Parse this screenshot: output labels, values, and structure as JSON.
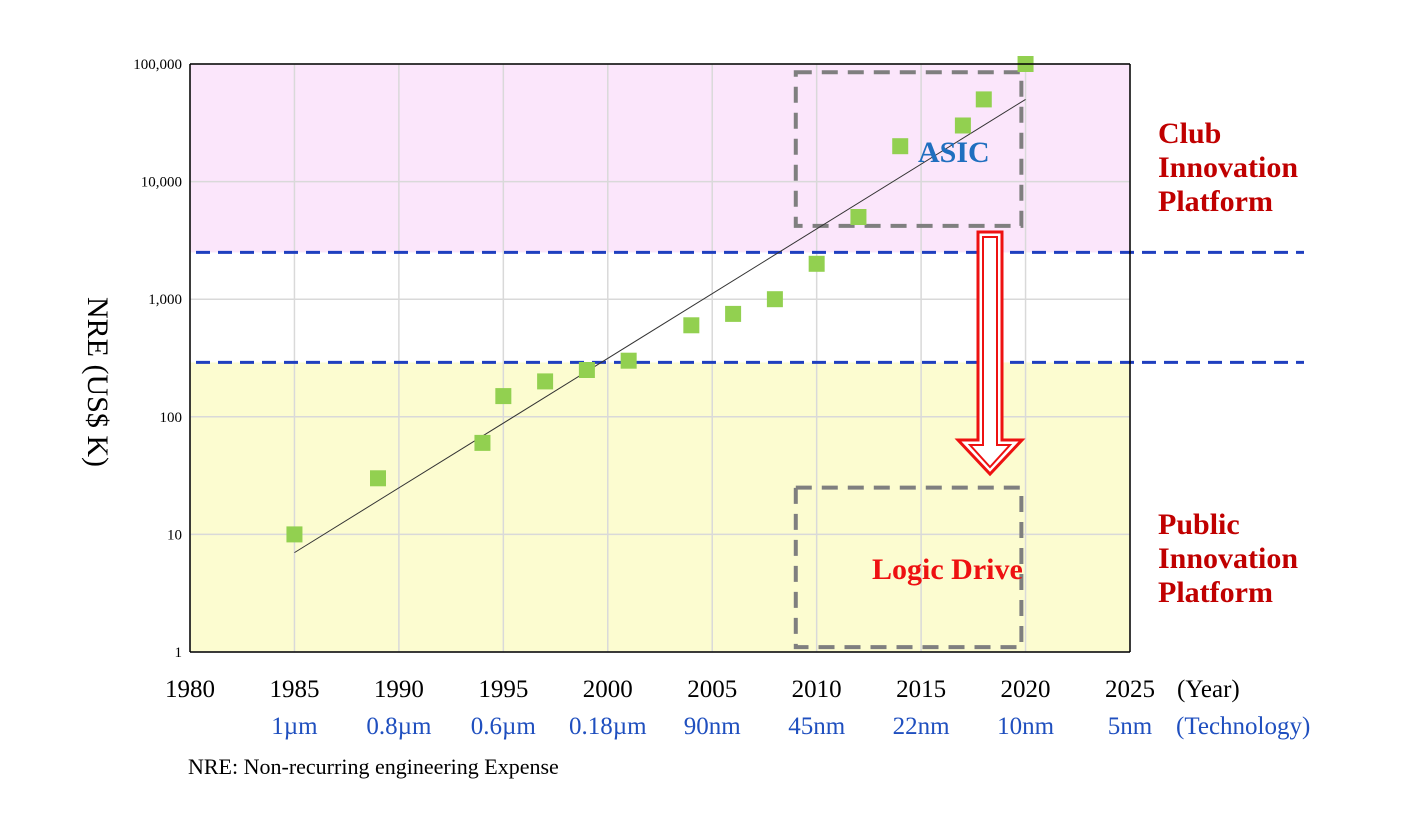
{
  "chart_data": {
    "type": "scatter",
    "title": "",
    "ylabel": "NRE (US$ K)",
    "xlabel": "(Year)",
    "x_secondary_label": "(Technology)",
    "y_scale": "log",
    "xlim": [
      1980,
      2025
    ],
    "ylim": [
      1,
      100000
    ],
    "x_ticks": [
      "1980",
      "1985",
      "1990",
      "1995",
      "2000",
      "2005",
      "2010",
      "2015",
      "2020",
      "2025"
    ],
    "y_ticks": [
      "1",
      "10",
      "100",
      "1,000",
      "10,000",
      "100,000"
    ],
    "technology_ticks": [
      {
        "year": 1985,
        "label": "1µm"
      },
      {
        "year": 1990,
        "label": "0.8µm"
      },
      {
        "year": 1995,
        "label": "0.6µm"
      },
      {
        "year": 2000,
        "label": "0.18µm"
      },
      {
        "year": 2005,
        "label": "90nm"
      },
      {
        "year": 2010,
        "label": "45nm"
      },
      {
        "year": 2015,
        "label": "22nm"
      },
      {
        "year": 2020,
        "label": "10nm"
      },
      {
        "year": 2025,
        "label": "5nm"
      }
    ],
    "series": [
      {
        "points": [
          {
            "x": 1985,
            "y": 10
          },
          {
            "x": 1989,
            "y": 30
          },
          {
            "x": 1994,
            "y": 60
          },
          {
            "x": 1995,
            "y": 150
          },
          {
            "x": 1997,
            "y": 200
          },
          {
            "x": 1999,
            "y": 250
          },
          {
            "x": 2001,
            "y": 300
          },
          {
            "x": 2004,
            "y": 600
          },
          {
            "x": 2006,
            "y": 750
          },
          {
            "x": 2008,
            "y": 1000
          },
          {
            "x": 2010,
            "y": 2000
          },
          {
            "x": 2012,
            "y": 5000
          },
          {
            "x": 2014,
            "y": 20000
          },
          {
            "x": 2017,
            "y": 30000
          },
          {
            "x": 2018,
            "y": 50000
          },
          {
            "x": 2020,
            "y": 100000
          }
        ]
      }
    ],
    "trendline": {
      "x": [
        1985,
        2020
      ],
      "y": [
        7,
        50000
      ]
    },
    "thresholds": [
      2500,
      290
    ],
    "regions": {
      "top": {
        "label_lines": [
          "Club",
          "Innovation",
          "Platform"
        ],
        "color": "#fbe6fb"
      },
      "bottom": {
        "label_lines": [
          "Public",
          "Innovation",
          "Platform"
        ],
        "color": "#fcfcd0"
      }
    },
    "boxes": {
      "asic": {
        "label": "ASIC",
        "x": [
          2009,
          2019.8
        ],
        "y": [
          4200,
          85000
        ],
        "label_color": "#1f6fbf"
      },
      "logic_drive": {
        "label": "Logic Drive",
        "x": [
          2009,
          2019.8
        ],
        "y": [
          1.1,
          25
        ],
        "label_color": "#ee1111"
      }
    },
    "grid": true,
    "footnote": "NRE: Non-recurring engineering Expense",
    "colors": {
      "marker": "#92d050",
      "trendline": "#333333",
      "threshold": "#1f3fbf",
      "box": "#7f7f7f",
      "region_label": "#c00000",
      "arrow": "#ee1111"
    }
  }
}
